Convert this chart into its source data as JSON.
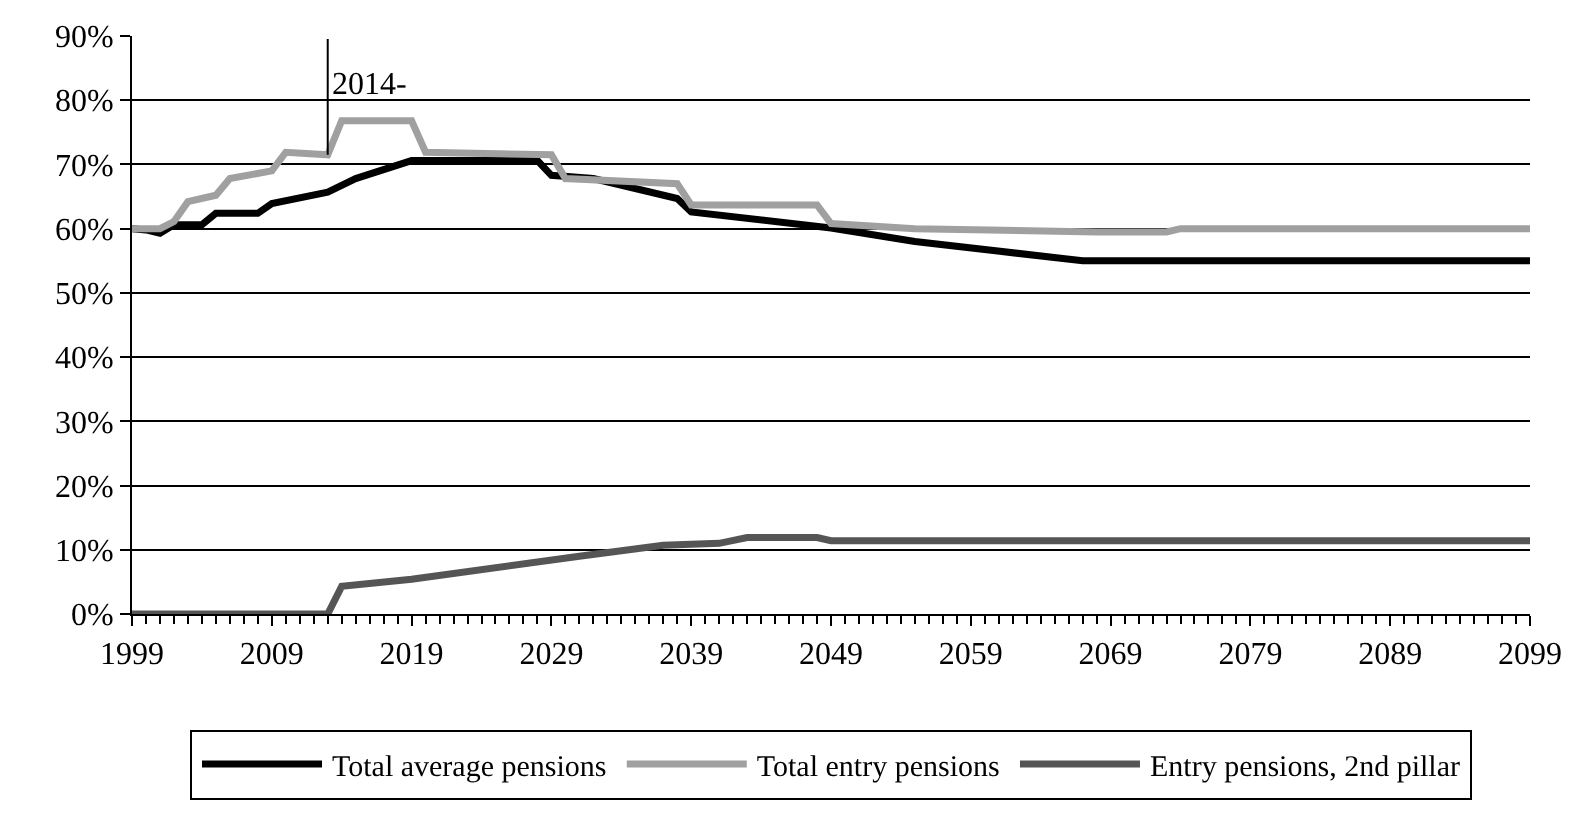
{
  "chart_data": {
    "type": "line",
    "xlim": [
      1999,
      2099
    ],
    "xticks": [
      1999,
      2009,
      2019,
      2029,
      2039,
      2049,
      2059,
      2069,
      2079,
      2089,
      2099
    ],
    "ylim": [
      0,
      90
    ],
    "yticks": [
      {
        "value": 0,
        "label": "0%"
      },
      {
        "value": 10,
        "label": "10%"
      },
      {
        "value": 20,
        "label": "20%"
      },
      {
        "value": 30,
        "label": "30%"
      },
      {
        "value": 40,
        "label": "40%"
      },
      {
        "value": 50,
        "label": "50%"
      },
      {
        "value": 60,
        "label": "60%"
      },
      {
        "value": 70,
        "label": "70%"
      },
      {
        "value": 80,
        "label": "80%"
      },
      {
        "value": 90,
        "label": "90%"
      }
    ],
    "grid": "y",
    "legend": "bottom",
    "marker": "none",
    "annotations": [
      {
        "text": "2014-",
        "x": 2013,
        "y": 71.5
      }
    ],
    "series": [
      {
        "name": "Total average pensions",
        "color": "#000000",
        "x": [
          1999,
          2000,
          2001,
          2002,
          2004,
          2005,
          2008,
          2009,
          2013,
          2015,
          2019,
          2028,
          2029,
          2032,
          2038,
          2039,
          2049,
          2055,
          2067,
          2099
        ],
        "values": [
          60,
          59.8,
          59.3,
          60.6,
          60.6,
          62.4,
          62.4,
          63.9,
          65.7,
          67.8,
          70.6,
          70.6,
          68.3,
          67.8,
          64.7,
          62.6,
          60.1,
          58,
          55,
          55
        ]
      },
      {
        "name": "Total entry pensions",
        "color": "#a0a0a0",
        "x": [
          1999,
          2001,
          2002,
          2003,
          2005,
          2006,
          2009,
          2010,
          2013,
          2014,
          2019,
          2020,
          2029,
          2030,
          2038,
          2039,
          2048,
          2049,
          2055,
          2068,
          2073,
          2074,
          2099
        ],
        "values": [
          60,
          60,
          61.1,
          64.2,
          65.2,
          67.8,
          69,
          71.9,
          71.5,
          76.8,
          76.8,
          71.9,
          71.5,
          67.8,
          67,
          63.7,
          63.7,
          60.8,
          60,
          59.5,
          59.5,
          60,
          60
        ]
      },
      {
        "name": "Entry pensions, 2nd pillar",
        "color": "#555555",
        "x": [
          1999,
          2013,
          2014,
          2019,
          2031,
          2037,
          2041,
          2043,
          2048,
          2049,
          2099
        ],
        "values": [
          0,
          0,
          4.3,
          5.4,
          9,
          10.7,
          11,
          11.9,
          11.9,
          11.4,
          11.4
        ]
      }
    ]
  }
}
